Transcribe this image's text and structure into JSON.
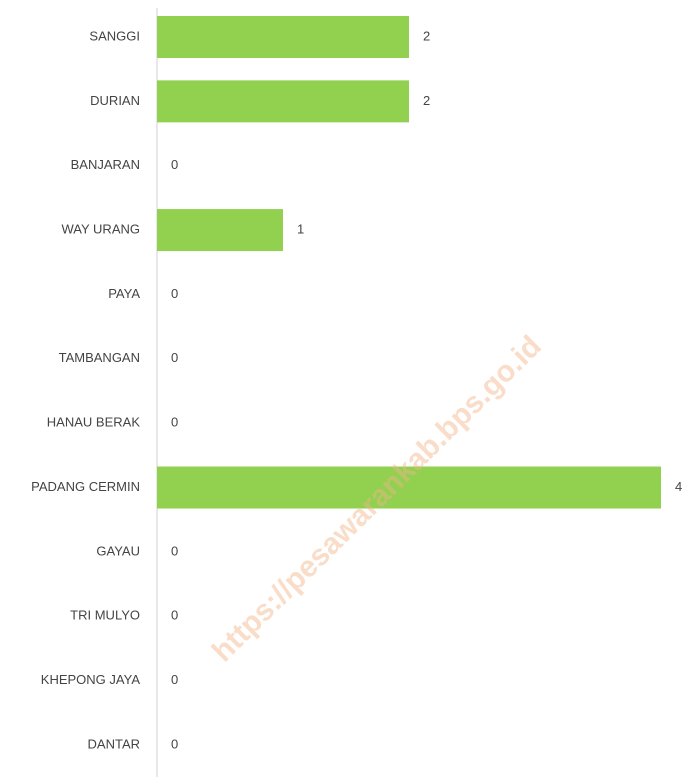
{
  "chart_data": {
    "type": "bar",
    "orientation": "horizontal",
    "categories": [
      "SANGGI",
      "DURIAN",
      "BANJARAN",
      "WAY URANG",
      "PAYA",
      "TAMBANGAN",
      "HANAU BERAK",
      "PADANG CERMIN",
      "GAYAU",
      "TRI MULYO",
      "KHEPONG JAYA",
      "DANTAR"
    ],
    "values": [
      2,
      2,
      0,
      1,
      0,
      0,
      0,
      4,
      0,
      0,
      0,
      0
    ],
    "color": "#92d050",
    "watermark": "https://pesawarankab.bps.go.id"
  }
}
